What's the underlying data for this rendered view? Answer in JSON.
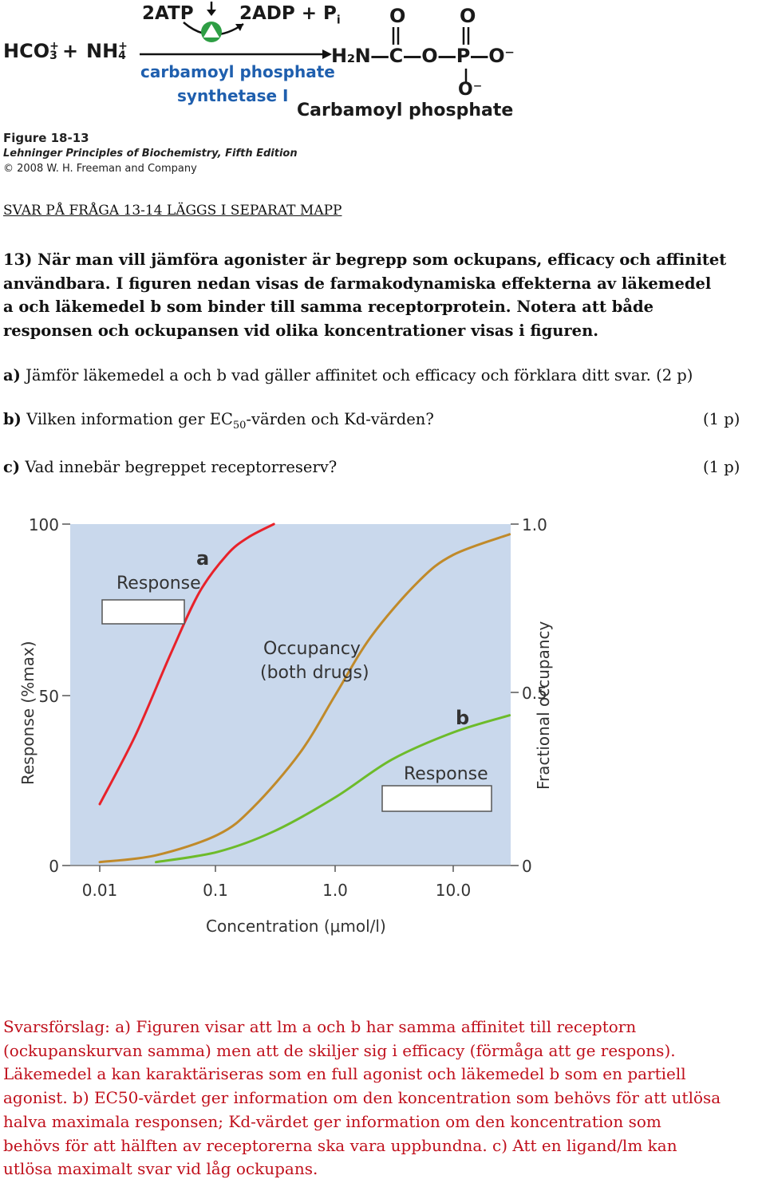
{
  "reaction": {
    "reactant_hco3": "HCO",
    "reactant_hco3_sub": "3",
    "reactant_hco3_sup": "+",
    "plus": "+",
    "reactant_nh4": "NH",
    "reactant_nh4_sub": "4",
    "reactant_nh4_sup": "+",
    "cofactor_in": "2ATP",
    "cofactor_out": "2ADP + P",
    "cofactor_out_sub": "i",
    "enzyme_line1": "carbamoyl phosphate",
    "enzyme_line2": "synthetase I",
    "product_formula": "H₂N—C—O—P—O⁻",
    "product_top_o1": "O",
    "product_top_o2": "O",
    "product_bottom_o": "O⁻",
    "product_name": "Carbamoyl phosphate"
  },
  "figure_credit": {
    "figure_label": "Figure 18-13",
    "book": "Lehninger Principles of Biochemistry, Fifth Edition",
    "copyright": "© 2008 W. H. Freeman and Company"
  },
  "section_heading": "SVAR PÅ FRÅGA 13-14 LÄGGS I SEPARAT MAPP",
  "question13": {
    "intro_lines": [
      "13) När man vill jämföra agonister är begrepp som ockupans, efficacy och affinitet",
      "användbara. I figuren nedan visas de farmakodynamiska effekterna av läkemedel",
      "a och läkemedel b som binder till samma receptorprotein. Notera att både",
      "responsen och ockupansen vid olika koncentrationer visas i figuren."
    ],
    "part_a_label": "a)",
    "part_a_text": "Jämför läkemedel a och b vad gäller affinitet och efficacy och förklara ditt svar.",
    "part_a_points": "(2 p)",
    "part_b_label": "b)",
    "part_b_text_before": "Vilken information ger EC",
    "part_b_sub": "50",
    "part_b_text_after": "-värden och Kd-värden?",
    "part_b_points": "(1 p)",
    "part_c_label": "c)",
    "part_c_text": "Vad innebär begreppet receptorreserv?",
    "part_c_points": "(1 p)"
  },
  "chart_data": {
    "type": "line",
    "x_scale": "log",
    "xlabel": "Concentration (μmol/l)",
    "ylabel_left": "Response (%max)",
    "ylabel_right": "Fractional occupancy",
    "x_ticks": [
      "0.01",
      "0.1",
      "1.0",
      "10.0"
    ],
    "y_left_ticks": [
      "0",
      "50",
      "100"
    ],
    "y_right_ticks": [
      "0",
      "0.5",
      "1.0"
    ],
    "xlim": [
      0.01,
      30
    ],
    "ylim_left": [
      0,
      100
    ],
    "ylim_right": [
      0,
      1.0
    ],
    "series": [
      {
        "name": "a",
        "color": "#e8222a",
        "points": [
          [
            0.01,
            18
          ],
          [
            0.02,
            38
          ],
          [
            0.04,
            62
          ],
          [
            0.07,
            80
          ],
          [
            0.12,
            91
          ],
          [
            0.18,
            96
          ],
          [
            0.3,
            100
          ]
        ]
      },
      {
        "name": "Occupancy (both drugs)",
        "color": "#c08a2a",
        "points": [
          [
            0.01,
            1
          ],
          [
            0.03,
            3
          ],
          [
            0.1,
            9
          ],
          [
            0.2,
            17
          ],
          [
            0.5,
            33
          ],
          [
            1.0,
            50
          ],
          [
            2.0,
            67
          ],
          [
            5.0,
            83
          ],
          [
            10.0,
            91
          ],
          [
            30.0,
            97
          ]
        ]
      },
      {
        "name": "b",
        "color": "#6dbb2a",
        "points": [
          [
            0.03,
            1
          ],
          [
            0.1,
            4
          ],
          [
            0.3,
            10
          ],
          [
            1.0,
            20
          ],
          [
            3.0,
            31
          ],
          [
            10.0,
            39
          ],
          [
            30.0,
            44
          ]
        ]
      }
    ],
    "annotations": {
      "label_a": "a",
      "label_b": "b",
      "response_label_top": "Response",
      "response_label_bottom": "Response",
      "occupancy_label_line1": "Occupancy",
      "occupancy_label_line2": "(both drugs)"
    },
    "colors": {
      "plot_background": "#c9d8ec",
      "answer_box": "#ffffff"
    }
  },
  "answer_lines": [
    "Svarsförslag: a) Figuren visar att lm a och b har samma affinitet till receptorn",
    "(ockupanskurvan samma) men att de skiljer sig i efficacy (förmåga att ge respons).",
    "Läkemedel a kan karaktäriseras som en full agonist och läkemedel b som en partiell",
    "agonist. b) EC50-värdet ger information om den koncentration som behövs för att utlösa",
    "halva maximala responsen; Kd-värdet ger information om den koncentration som",
    "behövs för att hälften av receptorerna ska vara uppbundna. c) Att en ligand/lm kan",
    "utlösa maximalt svar vid låg ockupans."
  ],
  "colors": {
    "answer_text": "#c0101c",
    "enzyme_text": "#1f5fae",
    "enzyme_icon": "#2e9e44"
  }
}
